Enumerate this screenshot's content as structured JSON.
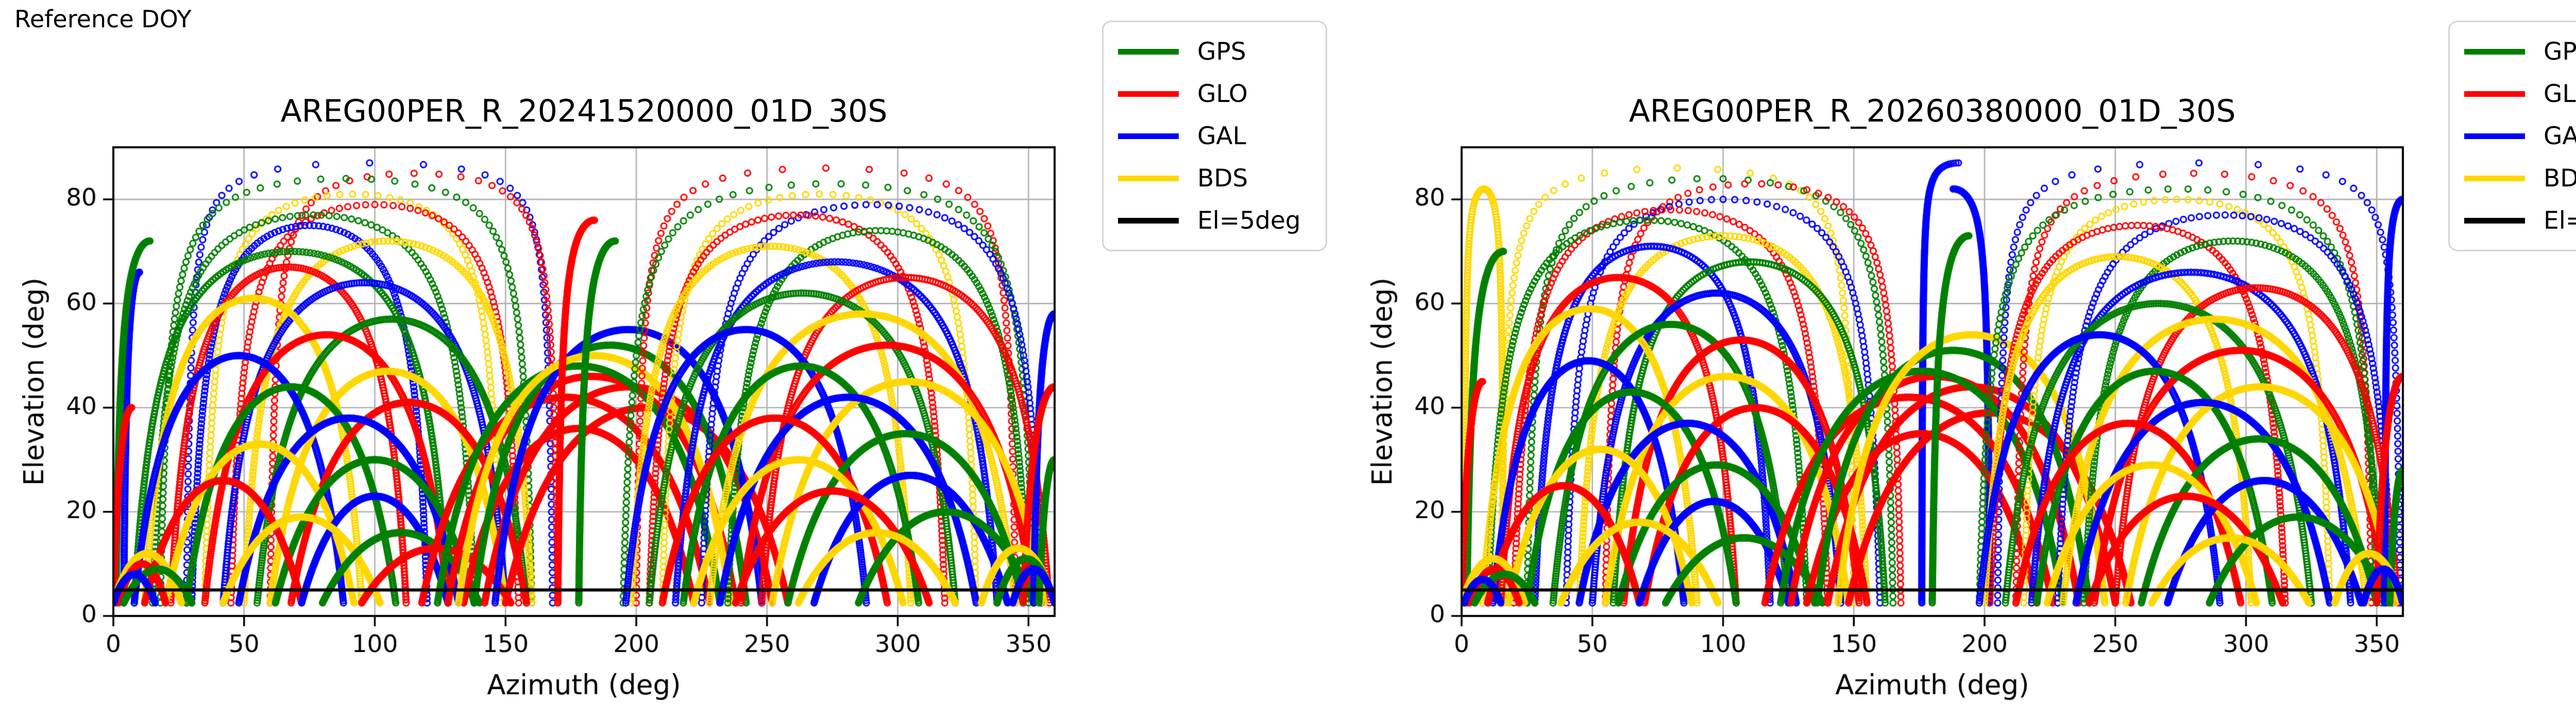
{
  "page": {
    "annotation": "Reference DOY"
  },
  "legend": {
    "position": "outside-top-right",
    "items": [
      {
        "label": "GPS",
        "color": "#008000"
      },
      {
        "label": "GLO",
        "color": "#ff0000"
      },
      {
        "label": "GAL",
        "color": "#0000ff"
      },
      {
        "label": "BDS",
        "color": "#ffd700"
      },
      {
        "label": "El=5deg",
        "color": "#000000"
      }
    ]
  },
  "chart_data": [
    {
      "type": "scatter",
      "title": "AREG00PER_R_20241520000_01D_30S",
      "xlabel": "Azimuth (deg)",
      "ylabel": "Elevation (deg)",
      "xlim": [
        0,
        360
      ],
      "ylim": [
        0,
        90
      ],
      "xticks": [
        0,
        50,
        100,
        150,
        200,
        250,
        300,
        350
      ],
      "yticks": [
        0,
        20,
        40,
        60,
        80
      ],
      "grid": true,
      "grid_color": "#b0b0b0",
      "marker": "open-circle",
      "elevation_cutoff_deg": 5,
      "cutoff_color": "#000000",
      "series_colors": {
        "GPS": "#008000",
        "GLO": "#ff0000",
        "GAL": "#0000ff",
        "BDS": "#ffd700"
      },
      "tracks_format": [
        "system",
        "az_start_deg",
        "az_end_deg",
        "peak_elevation_deg",
        "n_points",
        "segment(0=full_pass,1=rise_only,-1=set_only)"
      ],
      "tracks": [
        [
          "GAL",
          28,
          168,
          87,
          120,
          0
        ],
        [
          "GLO",
          60,
          170,
          85,
          130,
          0
        ],
        [
          "GPS",
          18,
          160,
          84,
          140,
          0
        ],
        [
          "BDS",
          35,
          148,
          81,
          150,
          0
        ],
        [
          "GLO",
          45,
          155,
          79,
          170,
          0
        ],
        [
          "GPS",
          15,
          138,
          77,
          190,
          0
        ],
        [
          "GAL",
          30,
          120,
          75,
          210,
          0
        ],
        [
          "BDS",
          50,
          160,
          72,
          230,
          0
        ],
        [
          "GPS",
          8,
          128,
          70,
          260,
          0
        ],
        [
          "GLO",
          22,
          112,
          67,
          270,
          0
        ],
        [
          "GAL",
          42,
          150,
          64,
          280,
          0
        ],
        [
          "BDS",
          12,
          95,
          61,
          300,
          0
        ],
        [
          "GPS",
          55,
          158,
          57,
          310,
          0
        ],
        [
          "GLO",
          35,
          128,
          54,
          320,
          0
        ],
        [
          "GAL",
          8,
          88,
          50,
          330,
          0
        ],
        [
          "BDS",
          60,
          150,
          47,
          340,
          0
        ],
        [
          "GPS",
          28,
          108,
          44,
          350,
          0
        ],
        [
          "GLO",
          68,
          158,
          41,
          350,
          0
        ],
        [
          "GAL",
          48,
          132,
          38,
          360,
          0
        ],
        [
          "BDS",
          20,
          92,
          33,
          360,
          0
        ],
        [
          "GPS",
          62,
          138,
          30,
          370,
          0
        ],
        [
          "GLO",
          12,
          72,
          26,
          370,
          0
        ],
        [
          "GAL",
          72,
          128,
          23,
          370,
          0
        ],
        [
          "BDS",
          42,
          102,
          19,
          380,
          0
        ],
        [
          "GPS",
          80,
          140,
          16,
          380,
          0
        ],
        [
          "GLO",
          95,
          152,
          13,
          380,
          0
        ],
        [
          "GAL",
          4,
          10,
          66,
          220,
          1
        ],
        [
          "GPS",
          1,
          14,
          72,
          240,
          1
        ],
        [
          "GLO",
          0,
          7,
          40,
          160,
          1
        ],
        [
          "BDS",
          0,
          26,
          12,
          260,
          0
        ],
        [
          "GLO",
          2,
          20,
          10,
          240,
          0
        ],
        [
          "GPS",
          4,
          30,
          9,
          240,
          0
        ],
        [
          "GAL",
          0,
          16,
          8,
          200,
          0
        ],
        [
          "GLO",
          128,
          238,
          46,
          420,
          0
        ],
        [
          "GLO",
          142,
          252,
          44,
          420,
          0
        ],
        [
          "GLO",
          118,
          228,
          42,
          420,
          0
        ],
        [
          "GLO",
          150,
          258,
          40,
          420,
          0
        ],
        [
          "GLO",
          134,
          222,
          36,
          400,
          0
        ],
        [
          "GPS",
          138,
          242,
          52,
          420,
          0
        ],
        [
          "GPS",
          124,
          232,
          48,
          420,
          0
        ],
        [
          "GAL",
          146,
          248,
          55,
          400,
          0
        ],
        [
          "BDS",
          132,
          236,
          50,
          400,
          0
        ],
        [
          "GLO",
          184,
          170,
          76,
          260,
          -1
        ],
        [
          "GPS",
          178,
          192,
          72,
          260,
          1
        ],
        [
          "GLO",
          200,
          345,
          86,
          120,
          0
        ],
        [
          "GPS",
          195,
          352,
          83,
          135,
          0
        ],
        [
          "BDS",
          210,
          330,
          81,
          150,
          0
        ],
        [
          "GAL",
          225,
          355,
          79,
          165,
          0
        ],
        [
          "GLO",
          205,
          318,
          77,
          185,
          0
        ],
        [
          "GPS",
          235,
          350,
          74,
          205,
          0
        ],
        [
          "BDS",
          198,
          305,
          71,
          230,
          0
        ],
        [
          "GAL",
          215,
          338,
          68,
          255,
          0
        ],
        [
          "GLO",
          248,
          358,
          65,
          270,
          0
        ],
        [
          "GPS",
          205,
          322,
          62,
          285,
          0
        ],
        [
          "BDS",
          228,
          345,
          58,
          300,
          0
        ],
        [
          "GAL",
          196,
          288,
          55,
          315,
          0
        ],
        [
          "GLO",
          240,
          352,
          52,
          325,
          0
        ],
        [
          "GPS",
          218,
          308,
          48,
          335,
          0
        ],
        [
          "BDS",
          252,
          356,
          45,
          345,
          0
        ],
        [
          "GAL",
          232,
          330,
          42,
          350,
          0
        ],
        [
          "GLO",
          210,
          296,
          38,
          355,
          0
        ],
        [
          "GPS",
          258,
          348,
          35,
          360,
          0
        ],
        [
          "BDS",
          222,
          302,
          30,
          365,
          0
        ],
        [
          "GAL",
          268,
          342,
          27,
          370,
          0
        ],
        [
          "GLO",
          238,
          312,
          24,
          370,
          0
        ],
        [
          "GPS",
          285,
          352,
          20,
          375,
          0
        ],
        [
          "BDS",
          262,
          322,
          16,
          380,
          0
        ],
        [
          "GAL",
          352,
          360,
          58,
          190,
          1
        ],
        [
          "GLO",
          348,
          360,
          44,
          160,
          1
        ],
        [
          "GPS",
          354,
          360,
          30,
          130,
          1
        ],
        [
          "BDS",
          332,
          360,
          13,
          240,
          0
        ],
        [
          "GPS",
          338,
          360,
          11,
          220,
          0
        ],
        [
          "GAL",
          344,
          360,
          9,
          200,
          0
        ]
      ]
    },
    {
      "type": "scatter",
      "title": "AREG00PER_R_20260380000_01D_30S",
      "xlabel": "Azimuth (deg)",
      "ylabel": "Elevation (deg)",
      "xlim": [
        0,
        360
      ],
      "ylim": [
        0,
        90
      ],
      "xticks": [
        0,
        50,
        100,
        150,
        200,
        250,
        300,
        350
      ],
      "yticks": [
        0,
        20,
        40,
        60,
        80
      ],
      "grid": true,
      "grid_color": "#b0b0b0",
      "marker": "open-circle",
      "elevation_cutoff_deg": 5,
      "cutoff_color": "#000000",
      "series_colors": {
        "GPS": "#008000",
        "GLO": "#ff0000",
        "GAL": "#0000ff",
        "BDS": "#ffd700"
      },
      "tracks_format": [
        "system",
        "az_start_deg",
        "az_end_deg",
        "peak_elevation_deg",
        "n_points",
        "segment(0=full_pass,1=rise_only,-1=set_only)"
      ],
      "tracks": [
        [
          "BDS",
          1,
          16,
          82,
          260,
          0
        ],
        [
          "BDS",
          15,
          150,
          86,
          120,
          0
        ],
        [
          "GPS",
          25,
          165,
          84,
          135,
          0
        ],
        [
          "GLO",
          55,
          168,
          83,
          145,
          0
        ],
        [
          "GAL",
          40,
          160,
          80,
          160,
          0
        ],
        [
          "GLO",
          20,
          140,
          78,
          180,
          0
        ],
        [
          "GPS",
          10,
          132,
          76,
          200,
          0
        ],
        [
          "BDS",
          45,
          155,
          73,
          225,
          0
        ],
        [
          "GAL",
          28,
          118,
          71,
          245,
          0
        ],
        [
          "GPS",
          58,
          162,
          68,
          265,
          0
        ],
        [
          "GLO",
          15,
          105,
          65,
          280,
          0
        ],
        [
          "GAL",
          50,
          145,
          62,
          295,
          0
        ],
        [
          "BDS",
          8,
          90,
          59,
          305,
          0
        ],
        [
          "GPS",
          35,
          125,
          56,
          315,
          0
        ],
        [
          "GLO",
          62,
          152,
          53,
          325,
          0
        ],
        [
          "GAL",
          12,
          85,
          49,
          335,
          0
        ],
        [
          "BDS",
          55,
          148,
          46,
          345,
          0
        ],
        [
          "GPS",
          25,
          105,
          43,
          350,
          0
        ],
        [
          "GLO",
          70,
          155,
          40,
          355,
          0
        ],
        [
          "GAL",
          45,
          128,
          37,
          360,
          0
        ],
        [
          "BDS",
          18,
          88,
          32,
          365,
          0
        ],
        [
          "GPS",
          60,
          135,
          29,
          370,
          0
        ],
        [
          "GLO",
          10,
          68,
          25,
          370,
          0
        ],
        [
          "GAL",
          68,
          125,
          22,
          375,
          0
        ],
        [
          "BDS",
          38,
          98,
          18,
          380,
          0
        ],
        [
          "GPS",
          78,
          138,
          15,
          380,
          0
        ],
        [
          "GPS",
          2,
          16,
          70,
          240,
          1
        ],
        [
          "GLO",
          0,
          8,
          45,
          170,
          1
        ],
        [
          "BDS",
          0,
          24,
          11,
          250,
          0
        ],
        [
          "GLO",
          3,
          22,
          9,
          240,
          0
        ],
        [
          "GPS",
          5,
          28,
          8,
          230,
          0
        ],
        [
          "GAL",
          1,
          15,
          7,
          200,
          0
        ],
        [
          "GAL",
          176,
          190,
          87,
          280,
          1
        ],
        [
          "GAL",
          188,
          202,
          82,
          270,
          -1
        ],
        [
          "GLO",
          126,
          236,
          46,
          420,
          0
        ],
        [
          "GLO",
          140,
          250,
          44,
          420,
          0
        ],
        [
          "GLO",
          116,
          226,
          42,
          420,
          0
        ],
        [
          "GLO",
          148,
          256,
          39,
          410,
          0
        ],
        [
          "GLO",
          132,
          220,
          35,
          400,
          0
        ],
        [
          "GPS",
          136,
          240,
          51,
          420,
          0
        ],
        [
          "GPS",
          122,
          230,
          47,
          415,
          0
        ],
        [
          "BDS",
          144,
          246,
          54,
          400,
          0
        ],
        [
          "GPS",
          180,
          194,
          73,
          260,
          1
        ],
        [
          "GAL",
          205,
          359,
          87,
          120,
          0
        ],
        [
          "GLO",
          212,
          348,
          85,
          130,
          0
        ],
        [
          "GPS",
          198,
          350,
          82,
          145,
          0
        ],
        [
          "BDS",
          215,
          332,
          80,
          160,
          0
        ],
        [
          "GAL",
          228,
          356,
          77,
          180,
          0
        ],
        [
          "GLO",
          202,
          315,
          75,
          200,
          0
        ],
        [
          "GPS",
          238,
          352,
          72,
          220,
          0
        ],
        [
          "BDS",
          200,
          302,
          69,
          240,
          0
        ],
        [
          "GAL",
          218,
          340,
          66,
          260,
          0
        ],
        [
          "GLO",
          250,
          358,
          63,
          275,
          0
        ],
        [
          "GPS",
          208,
          325,
          60,
          290,
          0
        ],
        [
          "BDS",
          230,
          346,
          57,
          305,
          0
        ],
        [
          "GAL",
          198,
          290,
          54,
          315,
          0
        ],
        [
          "GLO",
          242,
          354,
          51,
          325,
          0
        ],
        [
          "GPS",
          220,
          310,
          47,
          335,
          0
        ],
        [
          "BDS",
          254,
          357,
          44,
          345,
          0
        ],
        [
          "GAL",
          235,
          332,
          41,
          350,
          0
        ],
        [
          "GLO",
          212,
          298,
          37,
          355,
          0
        ],
        [
          "GPS",
          260,
          350,
          34,
          360,
          0
        ],
        [
          "BDS",
          224,
          304,
          29,
          365,
          0
        ],
        [
          "GAL",
          270,
          344,
          26,
          370,
          0
        ],
        [
          "GLO",
          240,
          314,
          23,
          370,
          0
        ],
        [
          "GPS",
          286,
          354,
          19,
          375,
          0
        ],
        [
          "BDS",
          264,
          324,
          15,
          380,
          0
        ],
        [
          "GAL",
          353,
          360,
          80,
          260,
          1
        ],
        [
          "GLO",
          350,
          360,
          46,
          170,
          1
        ],
        [
          "GPS",
          355,
          360,
          28,
          140,
          1
        ],
        [
          "BDS",
          334,
          360,
          12,
          240,
          0
        ],
        [
          "GAL",
          345,
          360,
          9,
          200,
          0
        ]
      ]
    }
  ]
}
